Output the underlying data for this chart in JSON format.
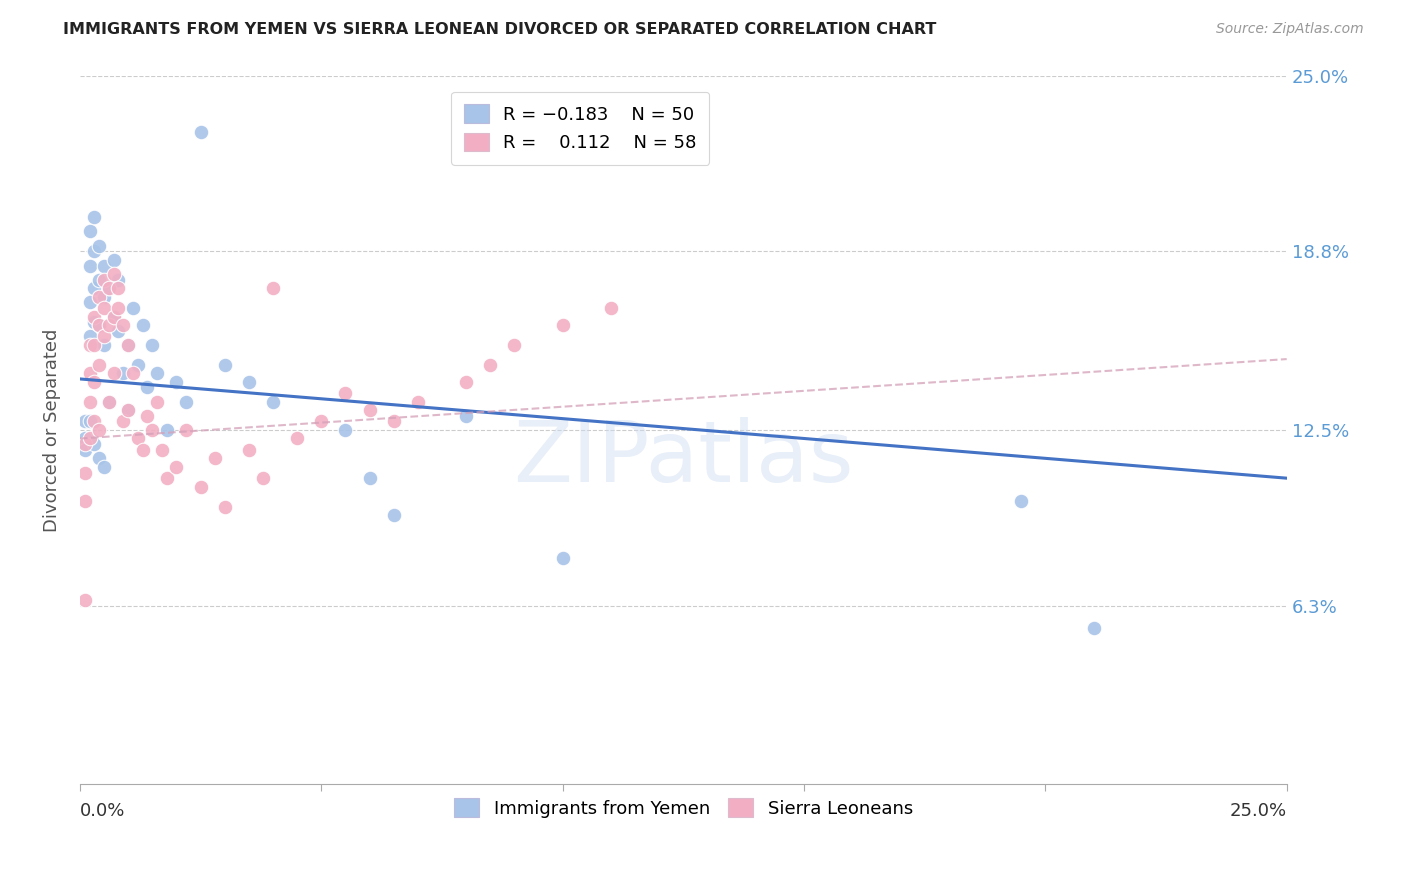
{
  "title": "IMMIGRANTS FROM YEMEN VS SIERRA LEONEAN DIVORCED OR SEPARATED CORRELATION CHART",
  "source": "Source: ZipAtlas.com",
  "ylabel": "Divorced or Separated",
  "ytick_labels": [
    "25.0%",
    "18.8%",
    "12.5%",
    "6.3%"
  ],
  "ytick_values": [
    0.25,
    0.188,
    0.125,
    0.063
  ],
  "xlim": [
    0.0,
    0.25
  ],
  "ylim": [
    0.0,
    0.25
  ],
  "blue_color": "#a8c4e8",
  "pink_color": "#f2afc4",
  "line_blue_color": "#4472c4",
  "line_pink_color": "#d4a0b8",
  "blue_line_y0": 0.143,
  "blue_line_y1": 0.108,
  "pink_line_y0": 0.122,
  "pink_line_y1": 0.15,
  "watermark": "ZIPatlas",
  "blue_points_x": [
    0.001,
    0.001,
    0.001,
    0.002,
    0.002,
    0.002,
    0.002,
    0.002,
    0.003,
    0.003,
    0.003,
    0.003,
    0.003,
    0.004,
    0.004,
    0.004,
    0.004,
    0.005,
    0.005,
    0.005,
    0.005,
    0.006,
    0.006,
    0.007,
    0.007,
    0.008,
    0.008,
    0.009,
    0.01,
    0.01,
    0.011,
    0.012,
    0.013,
    0.014,
    0.015,
    0.016,
    0.018,
    0.02,
    0.022,
    0.025,
    0.03,
    0.035,
    0.04,
    0.055,
    0.06,
    0.065,
    0.08,
    0.1,
    0.195,
    0.21
  ],
  "blue_points_y": [
    0.128,
    0.122,
    0.118,
    0.195,
    0.183,
    0.17,
    0.158,
    0.128,
    0.2,
    0.188,
    0.175,
    0.163,
    0.12,
    0.19,
    0.178,
    0.162,
    0.115,
    0.183,
    0.172,
    0.155,
    0.112,
    0.175,
    0.135,
    0.185,
    0.165,
    0.178,
    0.16,
    0.145,
    0.155,
    0.132,
    0.168,
    0.148,
    0.162,
    0.14,
    0.155,
    0.145,
    0.125,
    0.142,
    0.135,
    0.23,
    0.148,
    0.142,
    0.135,
    0.125,
    0.108,
    0.095,
    0.13,
    0.08,
    0.1,
    0.055
  ],
  "pink_points_x": [
    0.001,
    0.001,
    0.001,
    0.001,
    0.002,
    0.002,
    0.002,
    0.002,
    0.003,
    0.003,
    0.003,
    0.003,
    0.004,
    0.004,
    0.004,
    0.004,
    0.005,
    0.005,
    0.005,
    0.006,
    0.006,
    0.006,
    0.007,
    0.007,
    0.007,
    0.008,
    0.008,
    0.009,
    0.009,
    0.01,
    0.01,
    0.011,
    0.012,
    0.013,
    0.014,
    0.015,
    0.016,
    0.017,
    0.018,
    0.02,
    0.022,
    0.025,
    0.028,
    0.03,
    0.035,
    0.038,
    0.04,
    0.045,
    0.05,
    0.055,
    0.06,
    0.065,
    0.07,
    0.08,
    0.085,
    0.09,
    0.1,
    0.11
  ],
  "pink_points_y": [
    0.065,
    0.12,
    0.11,
    0.1,
    0.155,
    0.145,
    0.135,
    0.122,
    0.165,
    0.155,
    0.142,
    0.128,
    0.172,
    0.162,
    0.148,
    0.125,
    0.178,
    0.168,
    0.158,
    0.175,
    0.162,
    0.135,
    0.18,
    0.165,
    0.145,
    0.168,
    0.175,
    0.162,
    0.128,
    0.155,
    0.132,
    0.145,
    0.122,
    0.118,
    0.13,
    0.125,
    0.135,
    0.118,
    0.108,
    0.112,
    0.125,
    0.105,
    0.115,
    0.098,
    0.118,
    0.108,
    0.175,
    0.122,
    0.128,
    0.138,
    0.132,
    0.128,
    0.135,
    0.142,
    0.148,
    0.155,
    0.162,
    0.168
  ]
}
